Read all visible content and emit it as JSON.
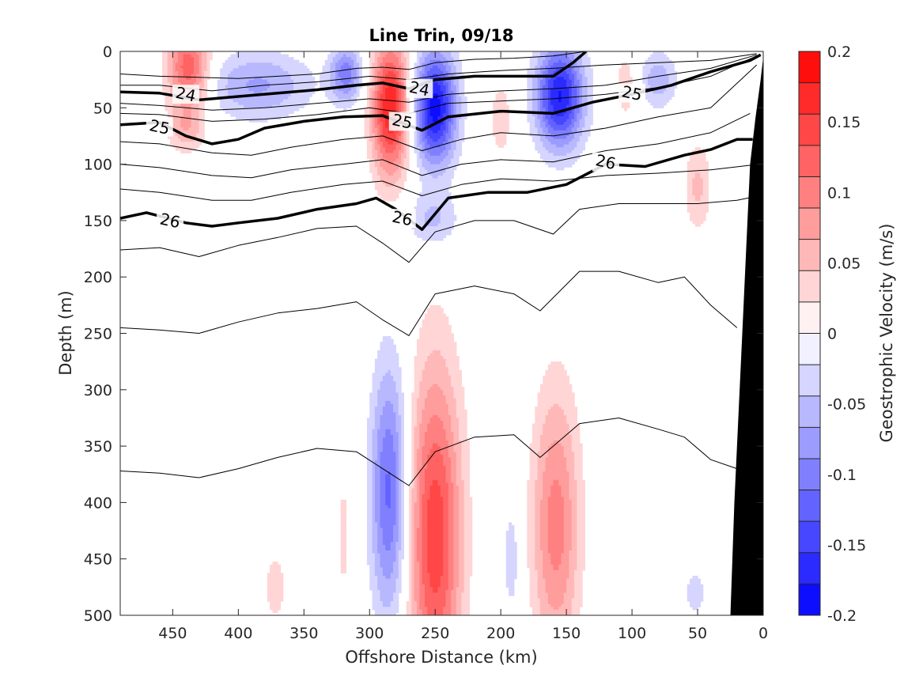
{
  "chart_data": {
    "type": "heatmap",
    "title": "Line Trin, 09/18",
    "xlabel": "Offshore Distance (km)",
    "ylabel": "Depth (m)",
    "xlim": [
      490,
      0
    ],
    "ylim": [
      0,
      500
    ],
    "x_reversed": true,
    "y_reversed": true,
    "x_ticks": [
      450,
      400,
      350,
      300,
      250,
      200,
      150,
      100,
      50,
      0
    ],
    "y_ticks": [
      0,
      50,
      100,
      150,
      200,
      250,
      300,
      350,
      400,
      450,
      500
    ],
    "colorbar": {
      "label": "Geostrophic Velocity (m/s)",
      "range": [
        -0.2,
        0.2
      ],
      "ticks": [
        0.2,
        0.15,
        0.1,
        0.05,
        0,
        -0.05,
        -0.1,
        -0.15,
        -0.2
      ],
      "tick_labels": [
        "0.2",
        "0.15",
        "0.1",
        "0.05",
        "0",
        "-0.05",
        "-0.1",
        "-0.15",
        "-0.2"
      ],
      "levels": 18,
      "positive_color": "#ff0000",
      "negative_color": "#0000ff"
    },
    "velocity_cores": [
      {
        "x": 438,
        "depth": 15,
        "value": 0.13,
        "x_halfwidth": 16,
        "d_halfwidth": 40
      },
      {
        "x": 440,
        "depth": 70,
        "value": 0.05,
        "x_halfwidth": 14,
        "d_halfwidth": 20
      },
      {
        "x": 385,
        "depth": 30,
        "value": -0.07,
        "x_halfwidth": 40,
        "d_halfwidth": 30
      },
      {
        "x": 318,
        "depth": 20,
        "value": -0.1,
        "x_halfwidth": 12,
        "d_halfwidth": 25
      },
      {
        "x": 284,
        "depth": 50,
        "value": 0.18,
        "x_halfwidth": 14,
        "d_halfwidth": 60
      },
      {
        "x": 250,
        "depth": 50,
        "value": -0.19,
        "x_halfwidth": 16,
        "d_halfwidth": 50
      },
      {
        "x": 252,
        "depth": 150,
        "value": -0.05,
        "x_halfwidth": 20,
        "d_halfwidth": 25
      },
      {
        "x": 200,
        "depth": 60,
        "value": 0.04,
        "x_halfwidth": 8,
        "d_halfwidth": 35
      },
      {
        "x": 155,
        "depth": 40,
        "value": -0.18,
        "x_halfwidth": 18,
        "d_halfwidth": 45
      },
      {
        "x": 105,
        "depth": 30,
        "value": 0.04,
        "x_halfwidth": 8,
        "d_halfwidth": 30
      },
      {
        "x": 80,
        "depth": 25,
        "value": -0.06,
        "x_halfwidth": 14,
        "d_halfwidth": 25
      },
      {
        "x": 50,
        "depth": 120,
        "value": 0.05,
        "x_halfwidth": 10,
        "d_halfwidth": 40
      },
      {
        "x": 285,
        "depth": 390,
        "value": -0.12,
        "x_halfwidth": 14,
        "d_halfwidth": 110
      },
      {
        "x": 250,
        "depth": 430,
        "value": 0.15,
        "x_halfwidth": 20,
        "d_halfwidth": 150
      },
      {
        "x": 158,
        "depth": 420,
        "value": 0.1,
        "x_halfwidth": 18,
        "d_halfwidth": 120
      },
      {
        "x": 192,
        "depth": 450,
        "value": -0.04,
        "x_halfwidth": 6,
        "d_halfwidth": 50
      },
      {
        "x": 372,
        "depth": 475,
        "value": 0.04,
        "x_halfwidth": 8,
        "d_halfwidth": 30
      },
      {
        "x": 320,
        "depth": 430,
        "value": 0.04,
        "x_halfwidth": 2,
        "d_halfwidth": 60
      },
      {
        "x": 52,
        "depth": 480,
        "value": -0.04,
        "x_halfwidth": 8,
        "d_halfwidth": 20
      }
    ],
    "density_contours": [
      {
        "level": 24,
        "label": "24",
        "bold": true,
        "label_positions": [
          [
            440,
            38
          ],
          [
            262,
            33
          ]
        ],
        "x": [
          490,
          460,
          430,
          400,
          370,
          340,
          310,
          290,
          270,
          250,
          220,
          190,
          160,
          145,
          135
        ],
        "depth": [
          36,
          37,
          43,
          40,
          37,
          34,
          30,
          28,
          33,
          25,
          22,
          22,
          22,
          10,
          0
        ]
      },
      {
        "level": 25,
        "label": "25",
        "bold": true,
        "label_positions": [
          [
            460,
            67
          ],
          [
            275,
            62
          ],
          [
            100,
            37
          ]
        ],
        "x": [
          490,
          460,
          440,
          420,
          400,
          380,
          350,
          320,
          290,
          260,
          240,
          200,
          160,
          130,
          100,
          70,
          40,
          10,
          2
        ],
        "depth": [
          65,
          63,
          75,
          82,
          78,
          68,
          62,
          58,
          57,
          70,
          58,
          53,
          55,
          45,
          38,
          30,
          18,
          8,
          3
        ]
      },
      {
        "level": 26,
        "label": "26",
        "bold": true,
        "label_positions": [
          [
            452,
            150
          ],
          [
            275,
            148
          ],
          [
            120,
            98
          ]
        ],
        "x": [
          490,
          470,
          440,
          420,
          400,
          370,
          340,
          310,
          295,
          280,
          260,
          240,
          210,
          180,
          150,
          120,
          90,
          60,
          40,
          20,
          8
        ],
        "depth": [
          148,
          143,
          152,
          155,
          152,
          148,
          140,
          135,
          130,
          140,
          158,
          130,
          125,
          125,
          118,
          100,
          102,
          92,
          87,
          78,
          78
        ]
      },
      {
        "level": 0,
        "bold": false,
        "x": [
          490,
          460,
          430,
          400,
          370,
          340,
          310,
          290,
          270,
          250,
          220,
          190,
          160,
          135
        ],
        "depth": [
          20,
          22,
          23,
          24,
          22,
          20,
          15,
          14,
          16,
          10,
          7,
          6,
          4,
          0
        ]
      },
      {
        "level": 0,
        "bold": false,
        "x": [
          490,
          460,
          420,
          380,
          340,
          300,
          270,
          240,
          200,
          160,
          120,
          80,
          40,
          5
        ],
        "depth": [
          30,
          30,
          35,
          30,
          27,
          22,
          25,
          20,
          17,
          15,
          12,
          10,
          8,
          2
        ]
      },
      {
        "level": 0,
        "bold": false,
        "x": [
          490,
          460,
          420,
          380,
          340,
          300,
          270,
          240,
          200,
          160,
          120,
          80,
          40,
          5
        ],
        "depth": [
          46,
          48,
          52,
          50,
          46,
          42,
          45,
          38,
          35,
          33,
          30,
          22,
          15,
          3
        ]
      },
      {
        "level": 0,
        "bold": false,
        "x": [
          490,
          460,
          420,
          380,
          340,
          300,
          270,
          240,
          200,
          160,
          120,
          80,
          40,
          5
        ],
        "depth": [
          55,
          56,
          62,
          60,
          56,
          50,
          55,
          46,
          44,
          42,
          38,
          32,
          22,
          4
        ]
      },
      {
        "level": 0,
        "bold": false,
        "x": [
          490,
          460,
          420,
          390,
          360,
          320,
          290,
          260,
          230,
          200,
          160,
          120,
          80,
          40,
          5
        ],
        "depth": [
          80,
          82,
          90,
          92,
          85,
          78,
          75,
          88,
          78,
          72,
          75,
          68,
          58,
          50,
          12
        ]
      },
      {
        "level": 0,
        "bold": false,
        "x": [
          490,
          460,
          420,
          390,
          360,
          320,
          290,
          260,
          230,
          200,
          160,
          120,
          80,
          40,
          10
        ],
        "depth": [
          100,
          103,
          110,
          112,
          105,
          100,
          96,
          110,
          100,
          96,
          98,
          88,
          82,
          72,
          55
        ]
      },
      {
        "level": 0,
        "bold": false,
        "x": [
          490,
          460,
          420,
          390,
          360,
          320,
          290,
          260,
          230,
          200,
          160,
          120,
          80,
          40,
          3
        ],
        "depth": [
          122,
          125,
          132,
          132,
          125,
          118,
          115,
          128,
          118,
          113,
          115,
          110,
          108,
          105,
          100
        ]
      },
      {
        "level": 0,
        "bold": false,
        "x": [
          490,
          460,
          430,
          400,
          370,
          340,
          310,
          290,
          270,
          250,
          220,
          190,
          160,
          140,
          110,
          80,
          50,
          20,
          3
        ],
        "depth": [
          176,
          174,
          182,
          172,
          165,
          157,
          155,
          170,
          187,
          160,
          150,
          150,
          162,
          140,
          135,
          135,
          135,
          132,
          128
        ]
      },
      {
        "level": 0,
        "bold": false,
        "x": [
          490,
          460,
          430,
          400,
          370,
          340,
          310,
          290,
          270,
          250,
          220,
          190,
          170,
          140,
          110,
          80,
          60,
          40,
          20
        ],
        "depth": [
          245,
          247,
          250,
          240,
          232,
          228,
          222,
          238,
          252,
          215,
          208,
          215,
          230,
          195,
          195,
          205,
          200,
          225,
          245
        ]
      },
      {
        "level": 0,
        "bold": false,
        "x": [
          490,
          460,
          430,
          400,
          370,
          340,
          310,
          290,
          270,
          250,
          220,
          190,
          170,
          140,
          110,
          80,
          60,
          40,
          20
        ],
        "depth": [
          372,
          374,
          378,
          370,
          360,
          352,
          355,
          370,
          385,
          355,
          342,
          340,
          360,
          330,
          325,
          335,
          342,
          362,
          370
        ]
      }
    ],
    "shelf": {
      "x": [
        0,
        0,
        2,
        6,
        10,
        16,
        22,
        25
      ],
      "depth": [
        500,
        5,
        25,
        60,
        100,
        250,
        400,
        500
      ],
      "color": "#000000"
    }
  }
}
